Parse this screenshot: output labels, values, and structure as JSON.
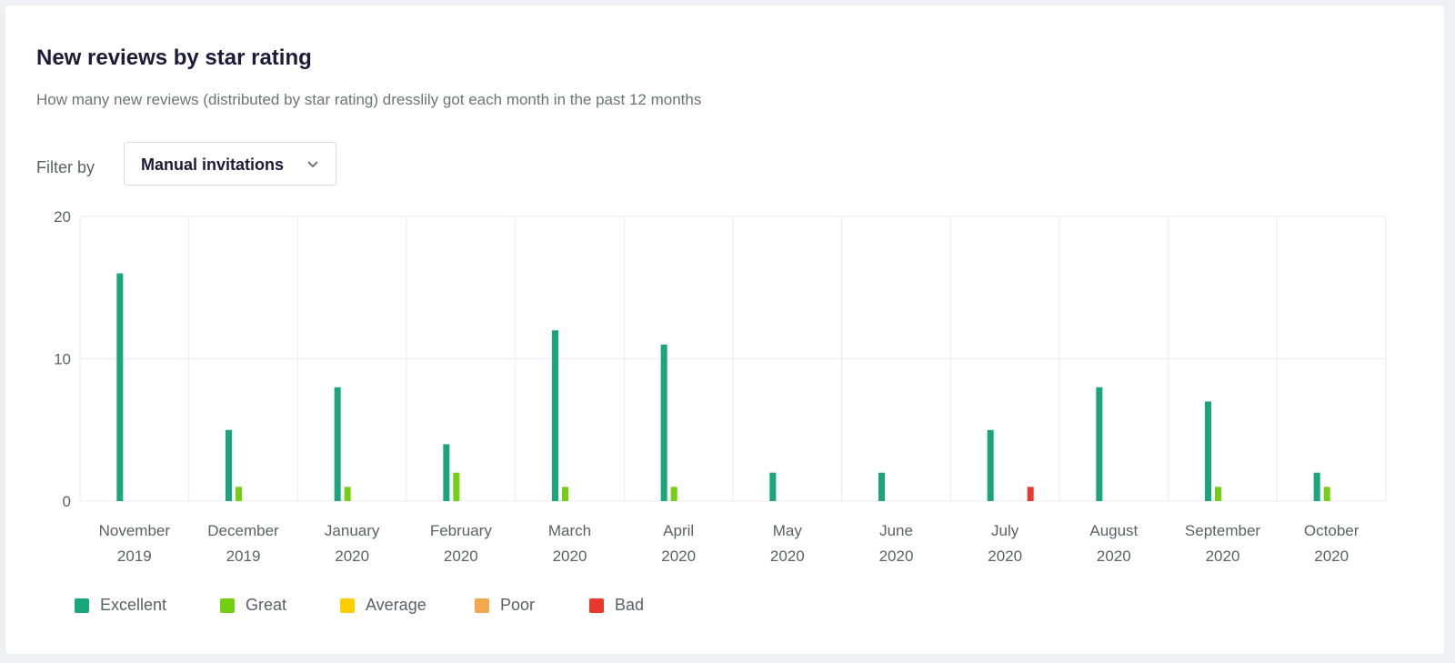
{
  "card": {
    "title": "New reviews by star rating",
    "subtitle": "How many new reviews (distributed by star rating) dresslily got each month in the past 12 months"
  },
  "filter": {
    "label": "Filter by",
    "selected": "Manual invitations",
    "icon": "chevron-down-icon"
  },
  "chart_data": {
    "type": "bar",
    "title": "",
    "xlabel": "",
    "ylabel": "",
    "ylim": [
      0,
      20
    ],
    "yticks": [
      0,
      10,
      20
    ],
    "grid": true,
    "legend_position": "bottom-left",
    "categories": [
      [
        "November",
        "2019"
      ],
      [
        "December",
        "2019"
      ],
      [
        "January",
        "2020"
      ],
      [
        "February",
        "2020"
      ],
      [
        "March",
        "2020"
      ],
      [
        "April",
        "2020"
      ],
      [
        "May",
        "2020"
      ],
      [
        "June",
        "2020"
      ],
      [
        "July",
        "2020"
      ],
      [
        "August",
        "2020"
      ],
      [
        "September",
        "2020"
      ],
      [
        "October",
        "2020"
      ]
    ],
    "series": [
      {
        "name": "Excellent",
        "color": "#1aa67a",
        "values": [
          16,
          5,
          8,
          4,
          12,
          11,
          2,
          2,
          5,
          8,
          7,
          2
        ]
      },
      {
        "name": "Great",
        "color": "#73cf11",
        "values": [
          0,
          1,
          1,
          2,
          1,
          1,
          0,
          0,
          0,
          0,
          1,
          1
        ]
      },
      {
        "name": "Average",
        "color": "#ffce00",
        "values": [
          0,
          0,
          0,
          0,
          0,
          0,
          0,
          0,
          0,
          0,
          0,
          0
        ]
      },
      {
        "name": "Poor",
        "color": "#f3a84f",
        "values": [
          0,
          0,
          0,
          0,
          0,
          0,
          0,
          0,
          0,
          0,
          0,
          0
        ]
      },
      {
        "name": "Bad",
        "color": "#e8392d",
        "values": [
          0,
          0,
          0,
          0,
          0,
          0,
          0,
          0,
          1,
          0,
          0,
          0
        ]
      }
    ]
  }
}
